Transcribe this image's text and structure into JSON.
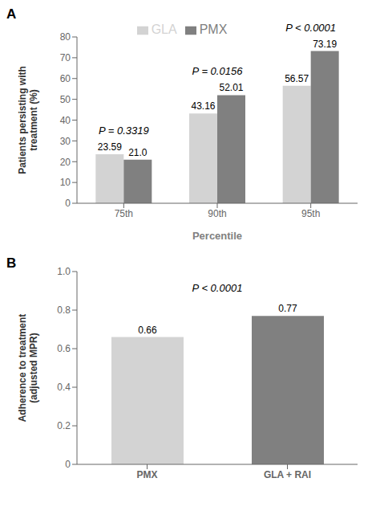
{
  "chart_data": [
    {
      "type": "bar",
      "title": "A",
      "categories": [
        "75th",
        "90th",
        "95th"
      ],
      "series": [
        {
          "name": "GLA",
          "color": "#d3d3d3",
          "values": [
            23.59,
            43.16,
            56.57
          ]
        },
        {
          "name": "PMX",
          "color": "#808080",
          "values": [
            21.0,
            52.01,
            73.19
          ],
          "value_labels": [
            "21.0",
            "52.01",
            "73.19"
          ]
        }
      ],
      "xlabel": "Percentile",
      "ylabel": "Patients persisting with\ntreatment (%)",
      "ylim": [
        0,
        80
      ],
      "yticks": [
        0,
        10,
        20,
        30,
        40,
        50,
        60,
        70,
        80
      ],
      "annotations": [
        "P = 0.3319",
        "P = 0.0156",
        "P < 0.0001"
      ],
      "legend": "top",
      "data_labels": true
    },
    {
      "type": "bar",
      "title": "B",
      "categories": [
        "PMX",
        "GLA + RAI"
      ],
      "values": [
        0.66,
        0.77
      ],
      "colors": [
        "#d3d3d3",
        "#808080"
      ],
      "ylabel": "Adherence to treatment\n(adjusted MPR)",
      "ylim": [
        0,
        1
      ],
      "yticks": [
        0,
        0.2,
        0.4,
        0.6,
        0.8,
        {
          "value": 1,
          "label": "1.0"
        }
      ],
      "annotations": [
        "P < 0.0001"
      ],
      "data_labels": true
    }
  ]
}
